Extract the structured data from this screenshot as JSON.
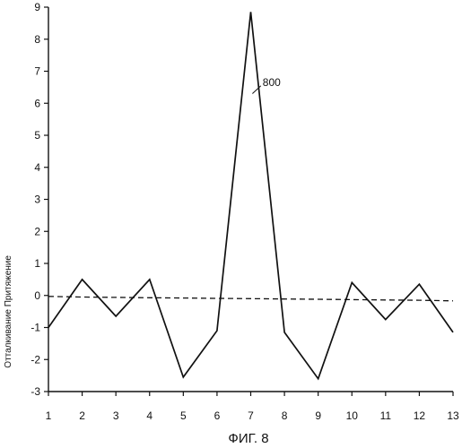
{
  "chart_data": {
    "type": "line",
    "title": "",
    "caption": "ФИГ. 8",
    "xlabel": "",
    "ylabel": "Отталкивание Притяжение",
    "x": [
      1,
      2,
      3,
      4,
      5,
      6,
      7,
      8,
      9,
      10,
      11,
      12,
      13
    ],
    "xlim": [
      1,
      13
    ],
    "ylim": [
      -3,
      9
    ],
    "x_ticks": [
      1,
      2,
      3,
      4,
      5,
      6,
      7,
      8,
      9,
      10,
      11,
      12,
      13
    ],
    "y_ticks": [
      -3,
      -2,
      -1,
      0,
      1,
      2,
      3,
      4,
      5,
      6,
      7,
      8,
      9
    ],
    "grid": false,
    "series": [
      {
        "values": [
          -1.0,
          0.5,
          -0.65,
          0.5,
          -2.55,
          -1.1,
          8.85,
          -1.15,
          -2.6,
          0.4,
          -0.75,
          0.35,
          -1.15
        ],
        "style": "solid",
        "color": "#111111"
      },
      {
        "values": [
          -0.03,
          -0.05,
          -0.06,
          -0.07,
          -0.08,
          -0.09,
          -0.1,
          -0.11,
          -0.12,
          -0.13,
          -0.14,
          -0.15,
          -0.17
        ],
        "style": "dashed",
        "color": "#111111"
      }
    ],
    "annotations": [
      {
        "text": "800",
        "x": 7.3,
        "y": 6.6,
        "points_to": {
          "x": 7.05,
          "y": 6.3
        }
      }
    ]
  }
}
